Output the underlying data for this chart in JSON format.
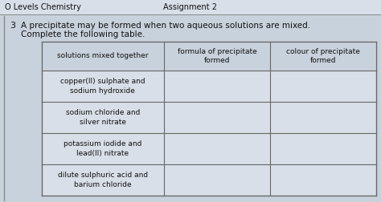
{
  "header_left": "O Levels Chemistry",
  "header_center": "Assignment 2",
  "question_number": "3",
  "question_text_line1": "A precipitate may be formed when two aqueous solutions are mixed.",
  "question_text_line2": "Complete the following table.",
  "col_headers": [
    "solutions mixed together",
    "formula of precipitate\nformed",
    "colour of precipitate\nformed"
  ],
  "rows": [
    "copper(II) sulphate and\nsodium hydroxide",
    "sodium chloride and\nsilver nitrate",
    "potassium iodide and\nlead(II) nitrate",
    "dilute sulphuric acid and\nbarium chloride"
  ],
  "page_bg": "#ccd4dc",
  "content_bg": "#c8d2dc",
  "table_bg": "#d8dfe8",
  "header_row_bg": "#c8d2dc",
  "border_color": "#666666",
  "text_color": "#111111",
  "header_line_color": "#888888",
  "top_strip_bg": "#d8dfe8"
}
